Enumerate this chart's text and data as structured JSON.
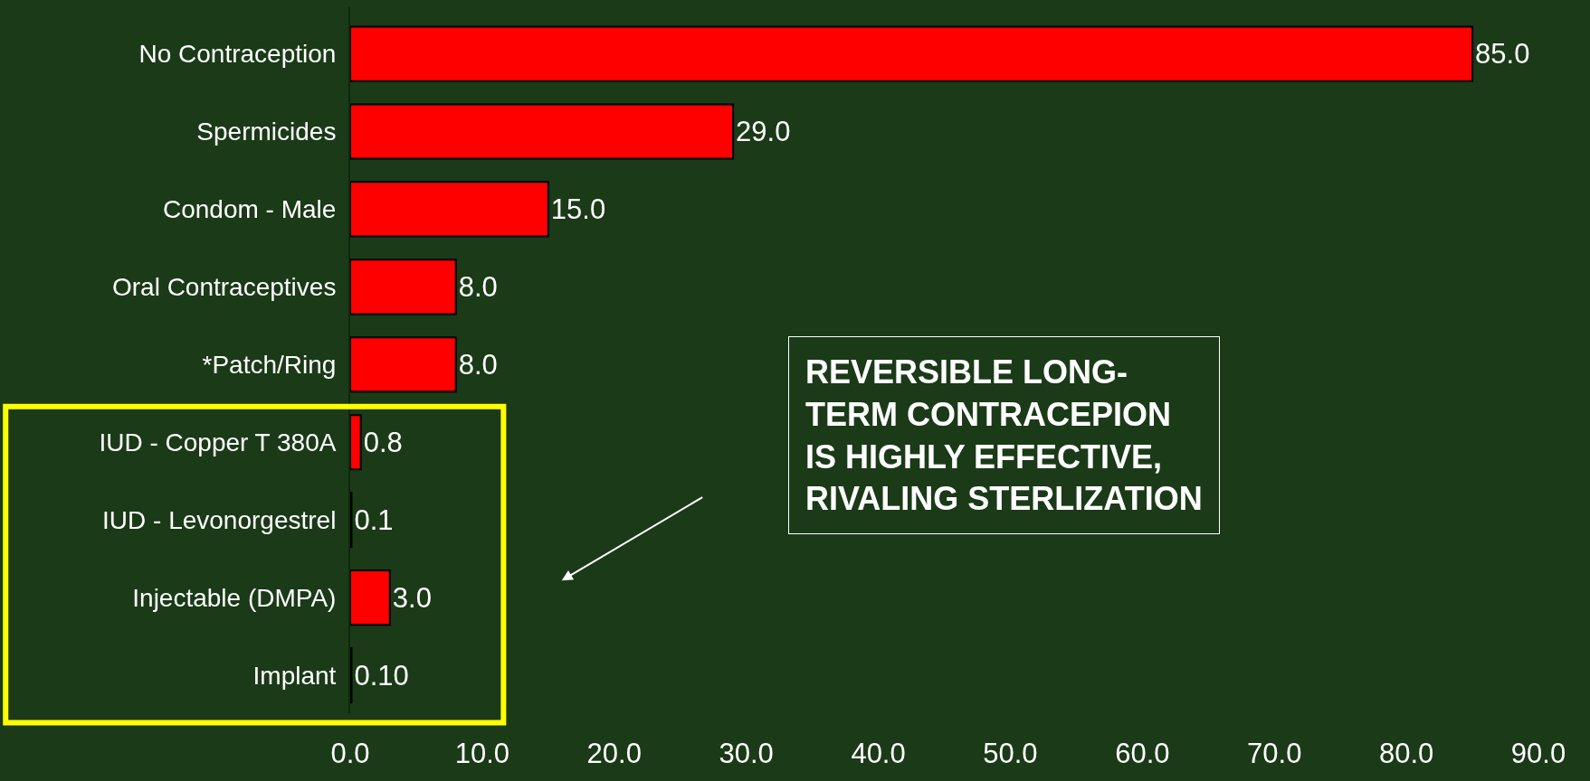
{
  "chart_data": {
    "type": "bar",
    "orientation": "horizontal",
    "categories": [
      "No Contraception",
      "Spermicides",
      "Condom - Male",
      "Oral Contraceptives",
      "*Patch/Ring",
      "IUD - Copper T 380A",
      "IUD - Levonorgestrel",
      "Injectable (DMPA)",
      "Implant"
    ],
    "values": [
      85.0,
      29.0,
      15.0,
      8.0,
      8.0,
      0.8,
      0.1,
      3.0,
      0.1
    ],
    "value_labels": [
      "85.0",
      "29.0",
      "15.0",
      "8.0",
      "8.0",
      "0.8",
      "0.1",
      "3.0",
      "0.10"
    ],
    "color": "#ff0000",
    "xlim": [
      0,
      90
    ],
    "xticks": [
      {
        "value": 0,
        "label": "0.0"
      },
      {
        "value": 10,
        "label": "10.0"
      },
      {
        "value": 20,
        "label": "20.0"
      },
      {
        "value": 30,
        "label": "30.0"
      },
      {
        "value": 40,
        "label": "40.0"
      },
      {
        "value": 50,
        "label": "50.0"
      },
      {
        "value": 60,
        "label": "60.0"
      },
      {
        "value": 70,
        "label": "70.0"
      },
      {
        "value": 80,
        "label": "80.0"
      },
      {
        "value": 90,
        "label": "90.0"
      }
    ],
    "grid": false,
    "annotations": [
      "REVERSIBLE LONG-\nTERM CONTRACEPION\nIS HIGHLY EFFECTIVE,\nRIVALING STERLIZATION"
    ]
  }
}
